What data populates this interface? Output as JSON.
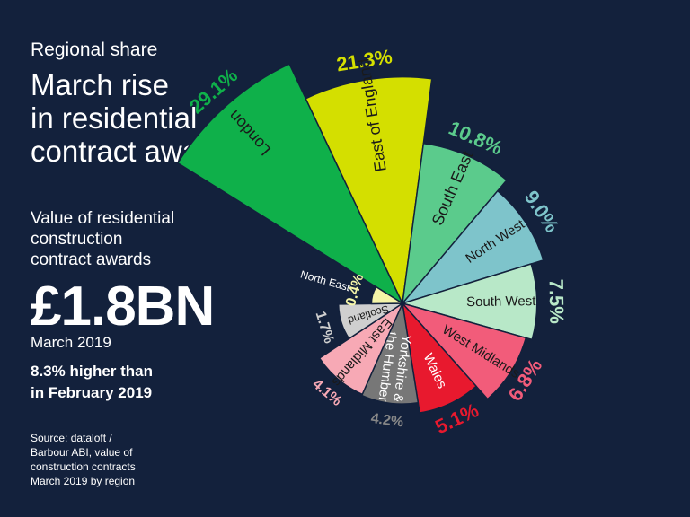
{
  "header": {
    "kicker": "Regional share",
    "headline_lines": [
      "March rise",
      "in residential",
      "contract awards"
    ]
  },
  "summary": {
    "measure_lines": [
      "Value of residential",
      "construction",
      "contract awards"
    ],
    "big_value": "£1.8BN",
    "period": "March 2019",
    "change_lines": [
      "8.3% higher than",
      "in February 2019"
    ]
  },
  "source": {
    "lines": [
      "Source: dataloft /",
      "Barbour ABI, value of",
      "construction contracts",
      "March 2019 by region"
    ]
  },
  "colors": {
    "background": "#13213c",
    "London": "#0fb04a",
    "East of England": "#d4df00",
    "South East": "#5bcb8c",
    "North West": "#7ec4cb",
    "South West": "#b8e8c8",
    "West Midlands": "#f25c7a",
    "Wales": "#e8192e",
    "Yorkshire & the Humber": "#777777",
    "East Midlands": "#f7a9b5",
    "Scotland": "#cfcfcf",
    "North East": "#f5f5a8"
  },
  "chart_data": {
    "type": "pie",
    "variant": "polar-area (radius proportional to share)",
    "unit": "%",
    "categories": [
      "London",
      "East of England",
      "South East",
      "North West",
      "South West",
      "West Midlands",
      "Wales",
      "Yorkshire & the Humber",
      "East Midlands",
      "Scotland",
      "North East"
    ],
    "values": [
      29.1,
      21.3,
      10.8,
      9.0,
      7.5,
      6.8,
      5.1,
      4.2,
      4.1,
      1.7,
      0.4
    ],
    "value_labels": [
      "29.1%",
      "21.3%",
      "10.8%",
      "9.0%",
      "7.5%",
      "6.8%",
      "5.1%",
      "4.2%",
      "4.1%",
      "1.7%",
      "0.4%"
    ],
    "category_labels": [
      [
        "London"
      ],
      [
        "East of England"
      ],
      [
        "South East"
      ],
      [
        "North West"
      ],
      [
        "South West"
      ],
      [
        "West Midlands"
      ],
      [
        "Wales"
      ],
      [
        "Yorkshire &",
        "the Humber"
      ],
      [
        "East Midlands"
      ],
      [
        "Scotland"
      ],
      [
        "North East"
      ]
    ],
    "value_label_colors": [
      "#0fb04a",
      "#d4df00",
      "#5bcb8c",
      "#7ec4cb",
      "#b8e8c8",
      "#f25c7a",
      "#e8192e",
      "#888888",
      "#f7a9b5",
      "#cfcfcf",
      "#f5f5a8"
    ]
  }
}
